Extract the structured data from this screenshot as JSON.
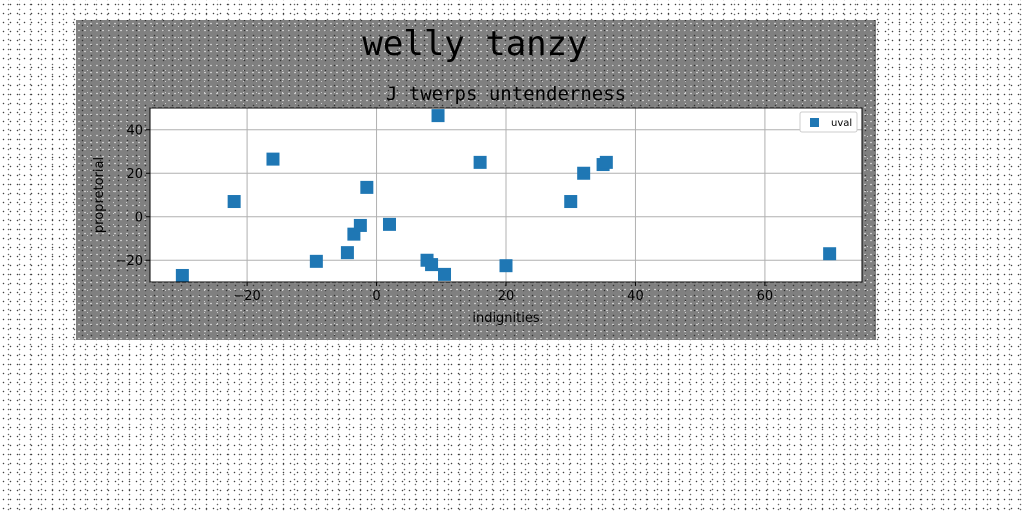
{
  "figure": {
    "suptitle": "welly tanzy"
  },
  "chart_data": {
    "type": "scatter",
    "title": "J twerps untenderness",
    "xlabel": "indignities",
    "ylabel": "propretorial",
    "xlim": [
      -35,
      75
    ],
    "ylim": [
      -30,
      50
    ],
    "xticks": [
      -20,
      0,
      20,
      40,
      60
    ],
    "yticks": [
      -20,
      0,
      20,
      40
    ],
    "grid": true,
    "legend_position": "top-right",
    "series": [
      {
        "name": "uval",
        "color": "#1f77b4",
        "marker": "square",
        "points": [
          {
            "x": -30,
            "y": -27
          },
          {
            "x": -22,
            "y": 7
          },
          {
            "x": -16,
            "y": 26.5
          },
          {
            "x": -9.3,
            "y": -20.5
          },
          {
            "x": -4.5,
            "y": -16.5
          },
          {
            "x": -3.5,
            "y": -8
          },
          {
            "x": -2.5,
            "y": -4
          },
          {
            "x": -1.5,
            "y": 13.5
          },
          {
            "x": 2,
            "y": -3.5
          },
          {
            "x": 7.8,
            "y": -20
          },
          {
            "x": 8.5,
            "y": -22
          },
          {
            "x": 9.5,
            "y": 46.5
          },
          {
            "x": 10.5,
            "y": -26.5
          },
          {
            "x": 16,
            "y": 25
          },
          {
            "x": 20,
            "y": -22.5
          },
          {
            "x": 30,
            "y": 7
          },
          {
            "x": 32,
            "y": 20
          },
          {
            "x": 35,
            "y": 24
          },
          {
            "x": 35.5,
            "y": 25
          },
          {
            "x": 70,
            "y": -17
          }
        ]
      }
    ]
  }
}
